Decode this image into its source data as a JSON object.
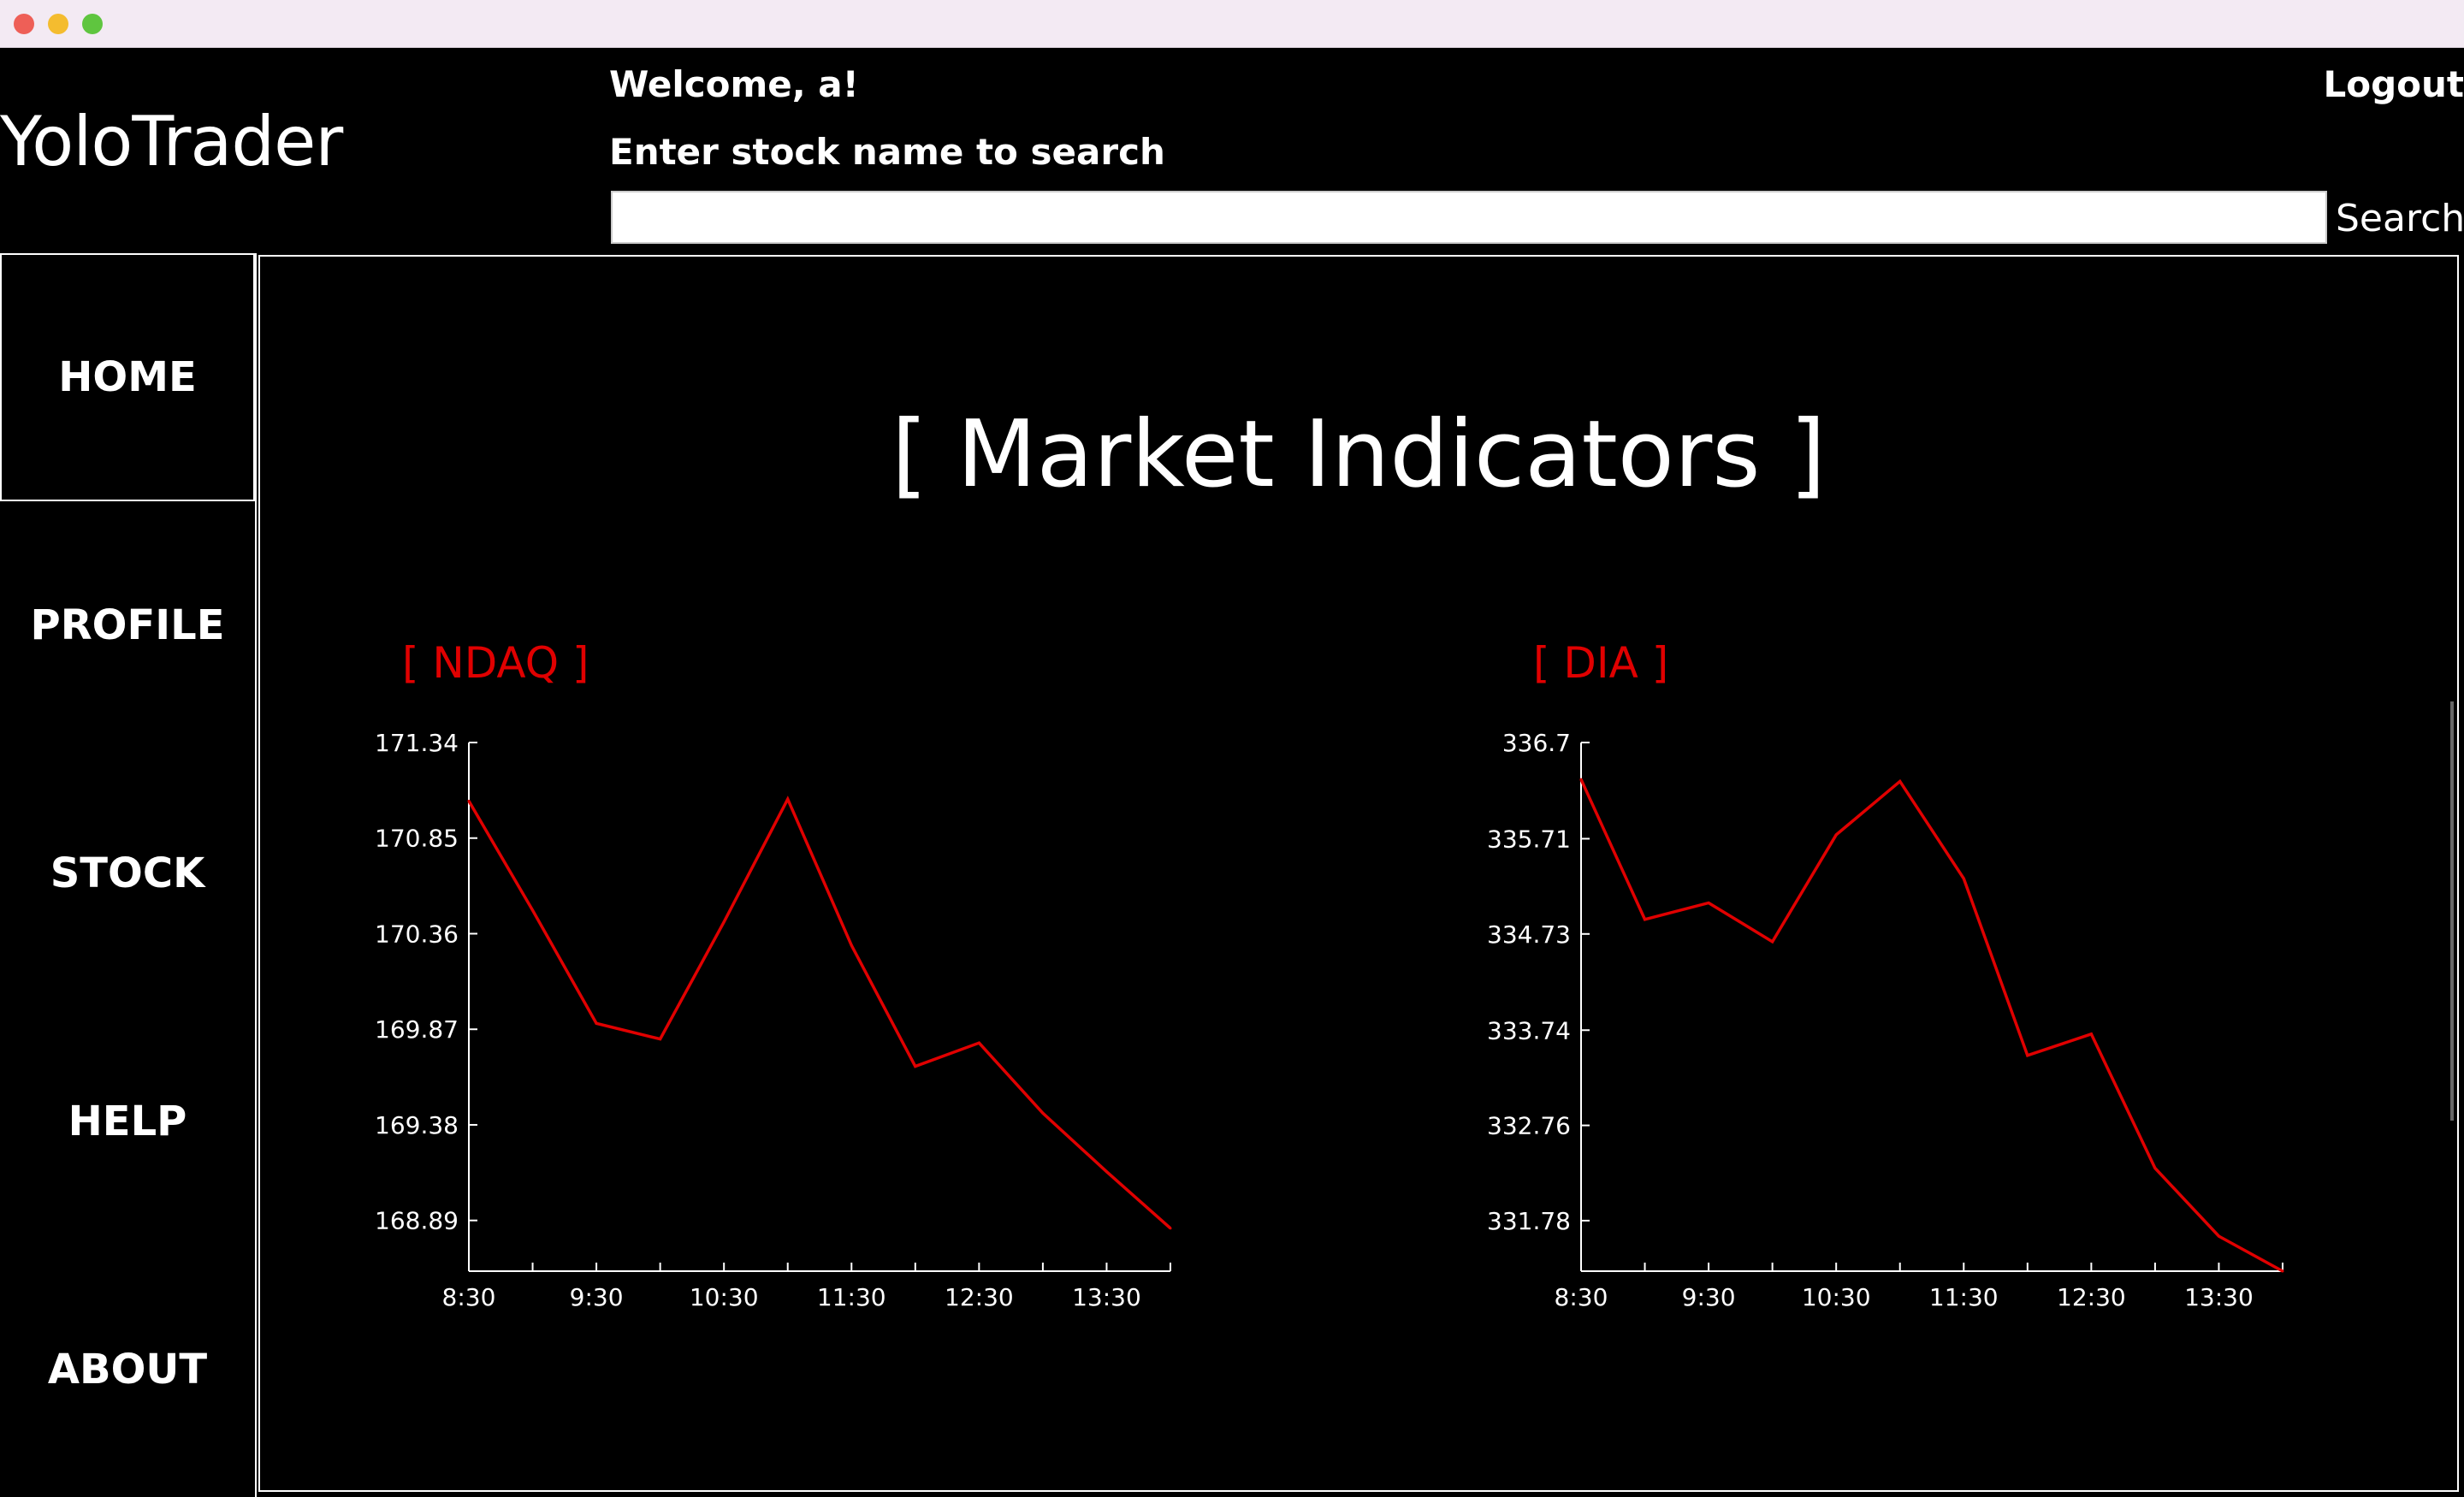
{
  "window": {
    "controls": [
      "close",
      "minimize",
      "maximize"
    ]
  },
  "header": {
    "brand": "YoloTrader",
    "welcome": "Welcome, a!",
    "logout": "Logout",
    "search_label": "Enter stock name to search",
    "search_value": "",
    "search_button": "Search"
  },
  "sidebar": {
    "items": [
      {
        "label": "HOME",
        "active": true
      },
      {
        "label": "PROFILE",
        "active": false
      },
      {
        "label": "STOCK",
        "active": false
      },
      {
        "label": "HELP",
        "active": false
      },
      {
        "label": "ABOUT",
        "active": false
      }
    ]
  },
  "main": {
    "title": "[ Market Indicators ]"
  },
  "colors": {
    "background": "#000000",
    "text": "#ffffff",
    "accent": "#e00000"
  },
  "chart_data": [
    {
      "type": "line",
      "title": "[ NDAQ ]",
      "x": [
        "8:30",
        "9:00",
        "9:30",
        "10:00",
        "10:30",
        "11:00",
        "11:30",
        "12:00",
        "12:30",
        "13:00",
        "13:30",
        "14:00"
      ],
      "xticks": [
        "8:30",
        "9:30",
        "10:30",
        "11:30",
        "12:30",
        "13:30"
      ],
      "values": [
        171.04,
        170.48,
        169.9,
        169.82,
        170.42,
        171.05,
        170.3,
        169.68,
        169.8,
        169.44,
        169.14,
        168.85
      ],
      "yticks": [
        "171.34",
        "170.85",
        "170.36",
        "169.87",
        "169.38",
        "168.89"
      ],
      "ylim": [
        168.63,
        171.34
      ],
      "xlabel": "",
      "ylabel": "",
      "grid": false
    },
    {
      "type": "line",
      "title": "[ DIA ]",
      "x": [
        "8:30",
        "9:00",
        "9:30",
        "10:00",
        "10:30",
        "11:00",
        "11:30",
        "12:00",
        "12:30",
        "13:00",
        "13:30",
        "14:00"
      ],
      "xticks": [
        "8:30",
        "9:30",
        "10:30",
        "11:30",
        "12:30",
        "13:30"
      ],
      "values": [
        336.32,
        334.88,
        335.05,
        334.65,
        335.75,
        336.3,
        335.3,
        333.48,
        333.7,
        332.32,
        331.62,
        331.26
      ],
      "yticks": [
        "336.7",
        "335.71",
        "334.73",
        "333.74",
        "332.76",
        "331.78"
      ],
      "ylim": [
        331.26,
        336.7
      ],
      "xlabel": "",
      "ylabel": "",
      "grid": false
    }
  ]
}
